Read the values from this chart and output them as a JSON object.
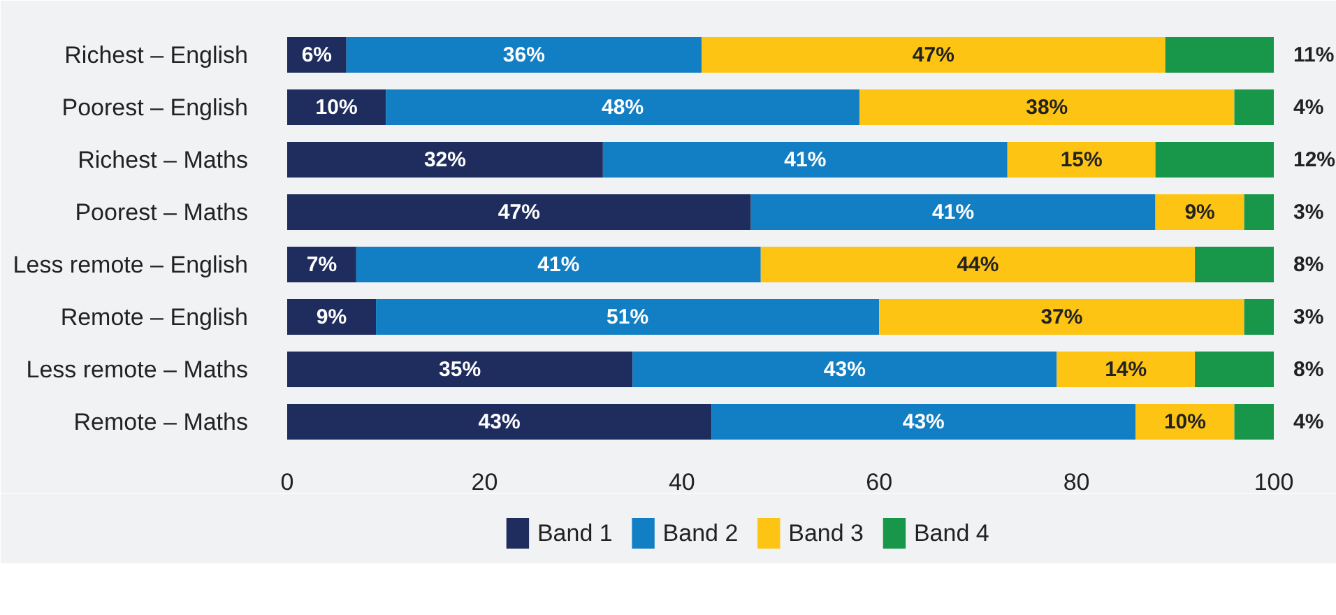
{
  "chart_data": {
    "type": "bar",
    "orientation": "horizontal",
    "stacked": true,
    "categories": [
      "Richest – English",
      "Poorest – English",
      "Richest – Maths",
      "Poorest – Maths",
      "Less remote – English",
      "Remote – English",
      "Less remote – Maths",
      "Remote – Maths"
    ],
    "series": [
      {
        "name": "Band 1",
        "color": "#1f2d5e",
        "values": [
          6,
          10,
          32,
          47,
          7,
          9,
          35,
          43
        ],
        "value_labels": [
          "6%",
          "10%",
          "32%",
          "47%",
          "7%",
          "9%",
          "35%",
          "43%"
        ]
      },
      {
        "name": "Band 2",
        "color": "#127ec4",
        "values": [
          36,
          48,
          41,
          41,
          41,
          51,
          43,
          43
        ],
        "value_labels": [
          "36%",
          "48%",
          "41%",
          "41%",
          "41%",
          "51%",
          "43%",
          "43%"
        ]
      },
      {
        "name": "Band 3",
        "color": "#fdc413",
        "values": [
          47,
          38,
          15,
          9,
          44,
          37,
          14,
          10
        ],
        "value_labels": [
          "47%",
          "38%",
          "15%",
          "9%",
          "44%",
          "37%",
          "14%",
          "10%"
        ]
      },
      {
        "name": "Band 4",
        "color": "#18974b",
        "values": [
          11,
          4,
          12,
          3,
          8,
          3,
          8,
          4
        ],
        "value_labels": [
          "11%",
          "4%",
          "12%",
          "3%",
          "8%",
          "3%",
          "8%",
          "4%"
        ]
      }
    ],
    "xlim": [
      0,
      100
    ],
    "xticks": [
      0,
      20,
      40,
      60,
      80,
      100
    ],
    "grid": false,
    "legend": "bottom"
  }
}
